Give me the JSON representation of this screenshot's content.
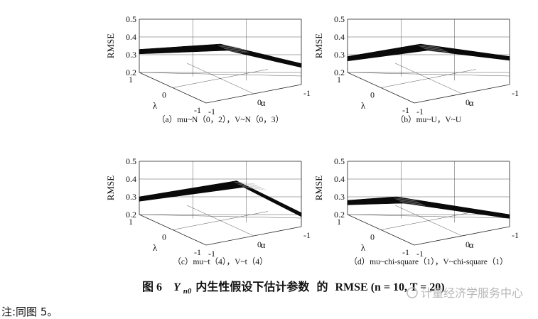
{
  "chart_data": [
    {
      "type": "surface",
      "caption": "（a）mu~N（0，2），V~N（0，3）",
      "zlabel": "RMSE",
      "xlabel": "λ",
      "ylabel": "α",
      "zticks": [
        "0.5",
        "0.4",
        "0.3",
        "0.2"
      ],
      "xticks": [
        "1",
        "0",
        "-1"
      ],
      "yticks": [
        "-1",
        "0",
        "-1"
      ],
      "zlim": [
        0.2,
        0.5
      ],
      "rmse_left": 0.33,
      "rmse_peak": 0.36,
      "rmse_right": 0.25,
      "peak_position": 0.5
    },
    {
      "type": "surface",
      "caption": "（b）mu~U，V~U",
      "zlabel": "RMSE",
      "xlabel": "λ",
      "ylabel": "α",
      "zticks": [
        "0.5",
        "0.4",
        "0.3",
        "0.2"
      ],
      "xticks": [
        "1",
        "0",
        "-1"
      ],
      "yticks": [
        "-1",
        "0",
        "-1"
      ],
      "zlim": [
        0.2,
        0.5
      ],
      "rmse_left": 0.29,
      "rmse_peak": 0.36,
      "rmse_right": 0.29,
      "peak_position": 0.45
    },
    {
      "type": "surface",
      "caption": "（c）mu~t（4），V~t（4）",
      "zlabel": "RMSE",
      "xlabel": "λ",
      "ylabel": "α",
      "zticks": [
        "0.5",
        "0.4",
        "0.3",
        "0.2"
      ],
      "xticks": [
        "1",
        "0",
        "-1"
      ],
      "yticks": [
        "-1",
        "0",
        "-1"
      ],
      "zlim": [
        0.2,
        0.5
      ],
      "rmse_left": 0.3,
      "rmse_peak": 0.39,
      "rmse_right": 0.21,
      "peak_position": 0.6
    },
    {
      "type": "surface",
      "caption": "（d）mu~chi-square（1），V~chi-square（1）",
      "zlabel": "RMSE",
      "xlabel": "λ",
      "ylabel": "α",
      "zticks": [
        "0.5",
        "0.4",
        "0.3",
        "0.2"
      ],
      "xticks": [
        "1",
        "0",
        "-1"
      ],
      "yticks": [
        "-1",
        "0",
        "-1"
      ],
      "zlim": [
        0.2,
        0.5
      ],
      "rmse_left": 0.28,
      "rmse_peak": 0.3,
      "rmse_right": 0.2,
      "peak_position": 0.3
    }
  ],
  "figure": {
    "number": "图 6",
    "symbol": "Y",
    "subscript": "n0",
    "title": "内生性假设下估计参数",
    "of": "的",
    "metric": "RMSE",
    "params": "(n = 10, T = 20)"
  },
  "footnote": "注:同图 5。",
  "watermark": "计量经济学服务中心"
}
